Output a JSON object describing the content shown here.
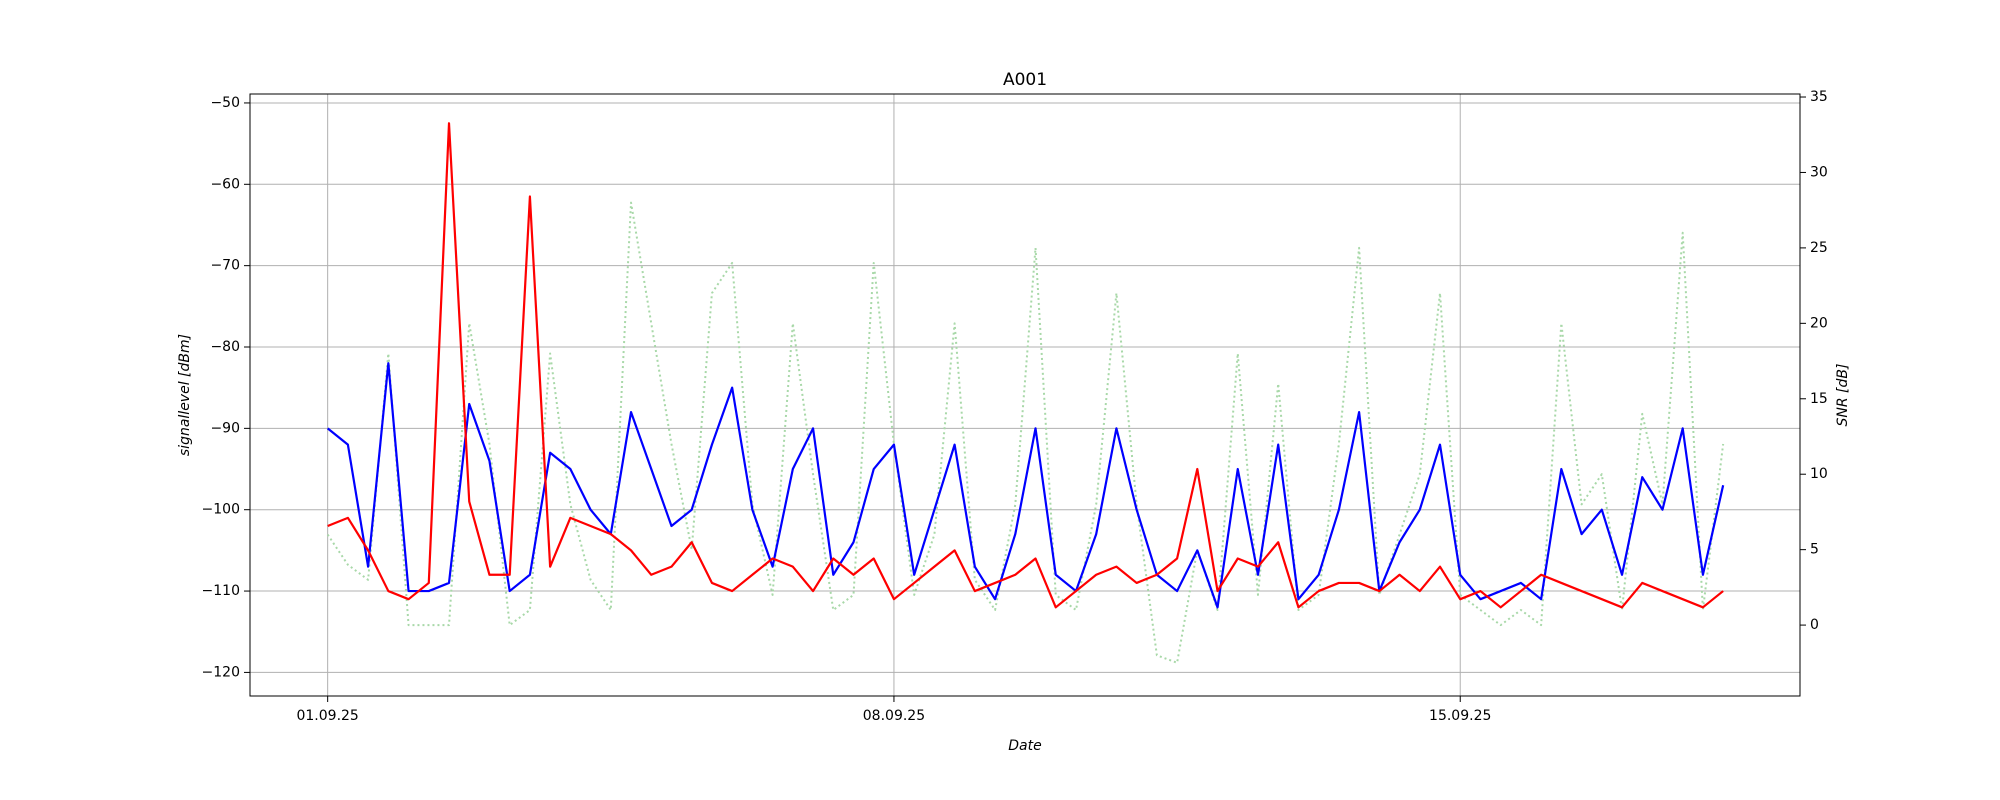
{
  "chart_data": {
    "type": "line",
    "title": "A001",
    "xlabel": "Date",
    "ylabel": "signallevel [dBm]",
    "y2label": "SNR [dB]",
    "x": [
      0,
      0.25,
      0.5,
      0.75,
      1,
      1.25,
      1.5,
      1.75,
      2,
      2.25,
      2.5,
      2.75,
      3,
      3.25,
      3.5,
      3.75,
      4,
      4.25,
      4.5,
      4.75,
      5,
      5.25,
      5.5,
      5.75,
      6,
      6.25,
      6.5,
      6.75,
      7,
      7.25,
      7.5,
      7.75,
      8,
      8.25,
      8.5,
      8.75,
      9,
      9.25,
      9.5,
      9.75,
      10,
      10.25,
      10.5,
      10.75,
      11,
      11.25,
      11.5,
      11.75,
      12,
      12.25,
      12.5,
      12.75,
      13,
      13.25,
      13.5,
      13.75,
      14,
      14.25,
      14.5,
      14.75,
      15,
      15.25,
      15.5,
      15.75,
      16,
      16.25,
      16.5,
      16.75,
      17,
      17.25
    ],
    "xlim": [
      -0.96,
      18.2
    ],
    "xticks": [
      {
        "value": 0,
        "label": "01.09.25"
      },
      {
        "value": 7,
        "label": "08.09.25"
      },
      {
        "value": 14,
        "label": "15.09.25"
      }
    ],
    "ylim": [
      -122.9,
      -48.9
    ],
    "yticks": [
      {
        "value": -120,
        "label": "−120"
      },
      {
        "value": -110,
        "label": "−110"
      },
      {
        "value": -100,
        "label": "−100"
      },
      {
        "value": -90,
        "label": "−90"
      },
      {
        "value": -80,
        "label": "−80"
      },
      {
        "value": -70,
        "label": "−70"
      },
      {
        "value": -60,
        "label": "−60"
      },
      {
        "value": -50,
        "label": "−50"
      }
    ],
    "y2lim": [
      -4.7,
      35.2
    ],
    "y2ticks": [
      0,
      5,
      10,
      15,
      20,
      25,
      30,
      35
    ],
    "grid": true,
    "series": [
      {
        "color": "#a8d8a8",
        "axis": "y2",
        "dashed": true,
        "values": [
          6,
          4,
          3,
          18,
          0,
          0,
          0,
          20,
          12,
          0,
          1,
          18,
          8,
          3,
          1,
          28,
          20,
          12,
          5,
          22,
          24,
          8,
          2,
          20,
          10,
          1,
          2,
          24,
          12,
          2,
          6,
          20,
          3,
          1,
          8,
          25,
          2,
          1,
          8,
          22,
          8,
          -2,
          -2.5,
          5,
          1,
          18,
          2,
          16,
          1,
          2,
          12,
          25,
          2,
          6,
          10,
          22,
          2,
          1,
          0,
          1,
          0,
          20,
          8,
          10,
          1,
          14,
          8,
          26,
          1,
          12
        ]
      },
      {
        "color": "#0000ff",
        "axis": "y",
        "values": [
          -90,
          -92,
          -107,
          -82,
          -110,
          -110,
          -109,
          -87,
          -94,
          -110,
          -108,
          -93,
          -95,
          -100,
          -103,
          -88,
          -95,
          -102,
          -100,
          -92,
          -85,
          -100,
          -107,
          -95,
          -90,
          -108,
          -104,
          -95,
          -92,
          -108,
          -100,
          -92,
          -107,
          -111,
          -103,
          -90,
          -108,
          -110,
          -103,
          -90,
          -100,
          -108,
          -110,
          -105,
          -112,
          -95,
          -108,
          -92,
          -111,
          -108,
          -100,
          -88,
          -110,
          -104,
          -100,
          -92,
          -108,
          -111,
          -110,
          -109,
          -111,
          -95,
          -103,
          -100,
          -108,
          -96,
          -100,
          -90,
          -108,
          -97
        ]
      },
      {
        "color": "#ff0000",
        "axis": "y",
        "values": [
          -102,
          -101,
          -105,
          -110,
          -111,
          -109,
          -52.5,
          -99,
          -108,
          -108,
          -61.5,
          -107,
          -101,
          -102,
          -103,
          -105,
          -108,
          -107,
          -104,
          -109,
          -110,
          -108,
          -106,
          -107,
          -110,
          -106,
          -108,
          -106,
          -111,
          -109,
          -107,
          -105,
          -110,
          -109,
          -108,
          -106,
          -112,
          -110,
          -108,
          -107,
          -109,
          -108,
          -106,
          -95,
          -110,
          -106,
          -107,
          -104,
          -112,
          -110,
          -109,
          -109,
          -110,
          -108,
          -110,
          -107,
          -111,
          -110,
          -112,
          -110,
          -108,
          -109,
          -110,
          -111,
          -112,
          -109,
          -110,
          -111,
          -112,
          -110
        ]
      }
    ]
  }
}
